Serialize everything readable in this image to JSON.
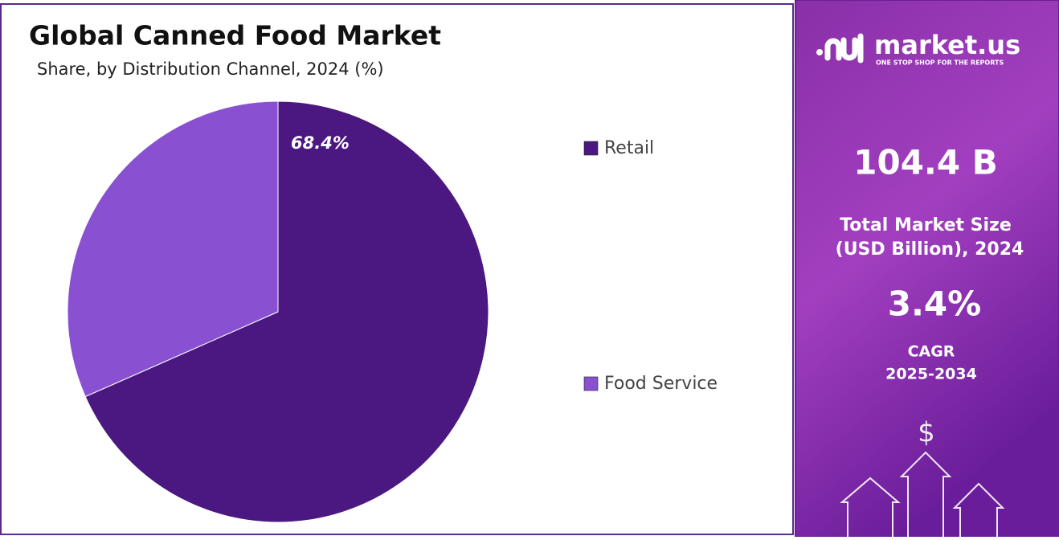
{
  "chart_data": {
    "type": "pie",
    "title": "Global Canned Food Market",
    "subtitle": "Share, by Distribution Channel, 2024 (%)",
    "categories": [
      "Retail",
      "Food Service"
    ],
    "values": [
      68.4,
      31.6
    ],
    "value_labels": [
      "68.4%",
      null
    ],
    "colors": [
      "#4b1780",
      "#8a50d2"
    ]
  },
  "panel": {
    "brand": "market.us",
    "tagline": "ONE STOP SHOP FOR THE REPORTS",
    "market_size": "104.4 B",
    "market_size_caption": [
      "Total Market Size",
      "(USD Billion), 2024"
    ],
    "cagr": "3.4%",
    "cagr_caption": [
      "CAGR",
      "2025-2034"
    ]
  }
}
